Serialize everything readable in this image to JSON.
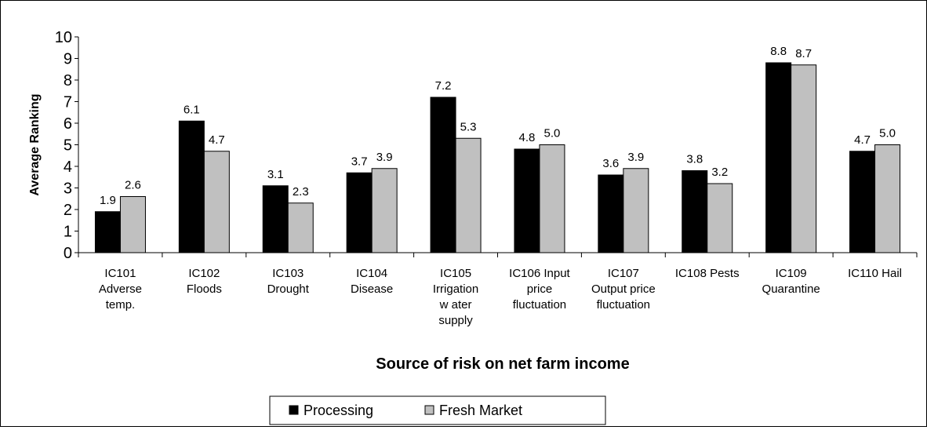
{
  "chart_data": {
    "type": "bar",
    "categories": [
      [
        "IC101",
        "Adverse",
        "temp."
      ],
      [
        "IC102",
        "Floods"
      ],
      [
        "IC103",
        "Drought"
      ],
      [
        "IC104",
        "Disease"
      ],
      [
        "IC105",
        "Irrigation",
        "w ater",
        "supply"
      ],
      [
        "IC106  Input",
        "price",
        "fluctuation"
      ],
      [
        "IC107",
        "Output price",
        "fluctuation"
      ],
      [
        "IC108  Pests"
      ],
      [
        "IC109",
        "Quarantine"
      ],
      [
        "IC110  Hail"
      ]
    ],
    "series": [
      {
        "name": "Processing",
        "color": "#000000",
        "values": [
          1.9,
          6.1,
          3.1,
          3.7,
          7.2,
          4.8,
          3.6,
          3.8,
          8.8,
          4.7
        ],
        "labels": [
          "1.9",
          "6.1",
          "3.1",
          "3.7",
          "7.2",
          "4.8",
          "3.6",
          "3.8",
          "8.8",
          "4.7"
        ]
      },
      {
        "name": "Fresh Market",
        "color": "#c0c0c0",
        "values": [
          2.6,
          4.7,
          2.3,
          3.9,
          5.3,
          5.0,
          3.9,
          3.2,
          8.7,
          5.0
        ],
        "labels": [
          "2.6",
          "4.7",
          "2.3",
          "3.9",
          "5.3",
          "5.0",
          "3.9",
          "3.2",
          "8.7",
          "5.0"
        ]
      }
    ],
    "xlabel": "Source of risk on net farm income",
    "ylabel": "Average Ranking",
    "ylim": [
      0,
      10
    ],
    "yticks": [
      0,
      1,
      2,
      3,
      4,
      5,
      6,
      7,
      8,
      9,
      10
    ],
    "grid": false,
    "legend": "bottom"
  }
}
